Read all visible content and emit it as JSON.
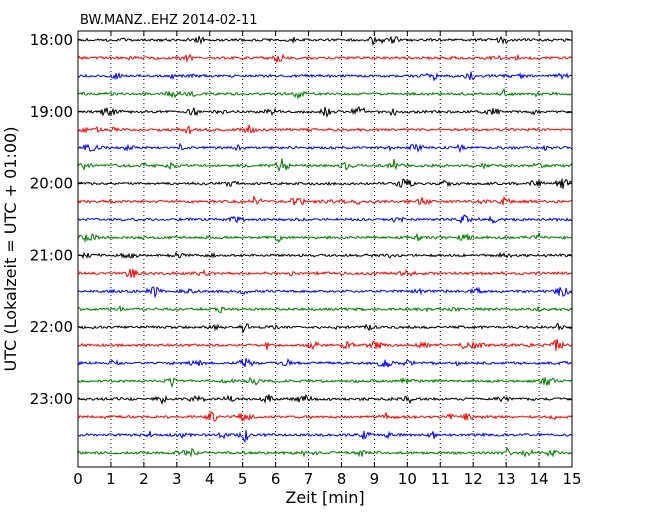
{
  "chart_data": {
    "type": "line",
    "title": "BW.MANZ..EHZ 2014-02-11",
    "xlabel": "Zeit  [min]",
    "ylabel": "UTC (Lokalzeit = UTC + 01:00)",
    "xlim": [
      0,
      15
    ],
    "x_ticks": [
      "0",
      "1",
      "2",
      "3",
      "4",
      "5",
      "6",
      "7",
      "8",
      "9",
      "10",
      "11",
      "12",
      "13",
      "14",
      "15"
    ],
    "y_ticks": [
      "18:00",
      "19:00",
      "20:00",
      "21:00",
      "22:00",
      "23:00"
    ],
    "grid": "vertical dotted",
    "colors": [
      "#000000",
      "#ff0000",
      "#0000ff",
      "#007f00"
    ],
    "traces_per_hour": 4,
    "trace_count": 24,
    "trace_start_times": [
      "18:00",
      "18:15",
      "18:30",
      "18:45",
      "19:00",
      "19:15",
      "19:30",
      "19:45",
      "20:00",
      "20:15",
      "20:30",
      "20:45",
      "21:00",
      "21:15",
      "21:30",
      "21:45",
      "22:00",
      "22:15",
      "22:30",
      "22:45",
      "23:00",
      "23:15",
      "23:30",
      "23:45"
    ],
    "trace_colors": [
      "#000000",
      "#ff0000",
      "#0000ff",
      "#007f00",
      "#000000",
      "#ff0000",
      "#0000ff",
      "#007f00",
      "#000000",
      "#ff0000",
      "#0000ff",
      "#007f00",
      "#000000",
      "#ff0000",
      "#0000ff",
      "#007f00",
      "#000000",
      "#ff0000",
      "#0000ff",
      "#007f00",
      "#000000",
      "#ff0000",
      "#0000ff",
      "#007f00"
    ]
  }
}
